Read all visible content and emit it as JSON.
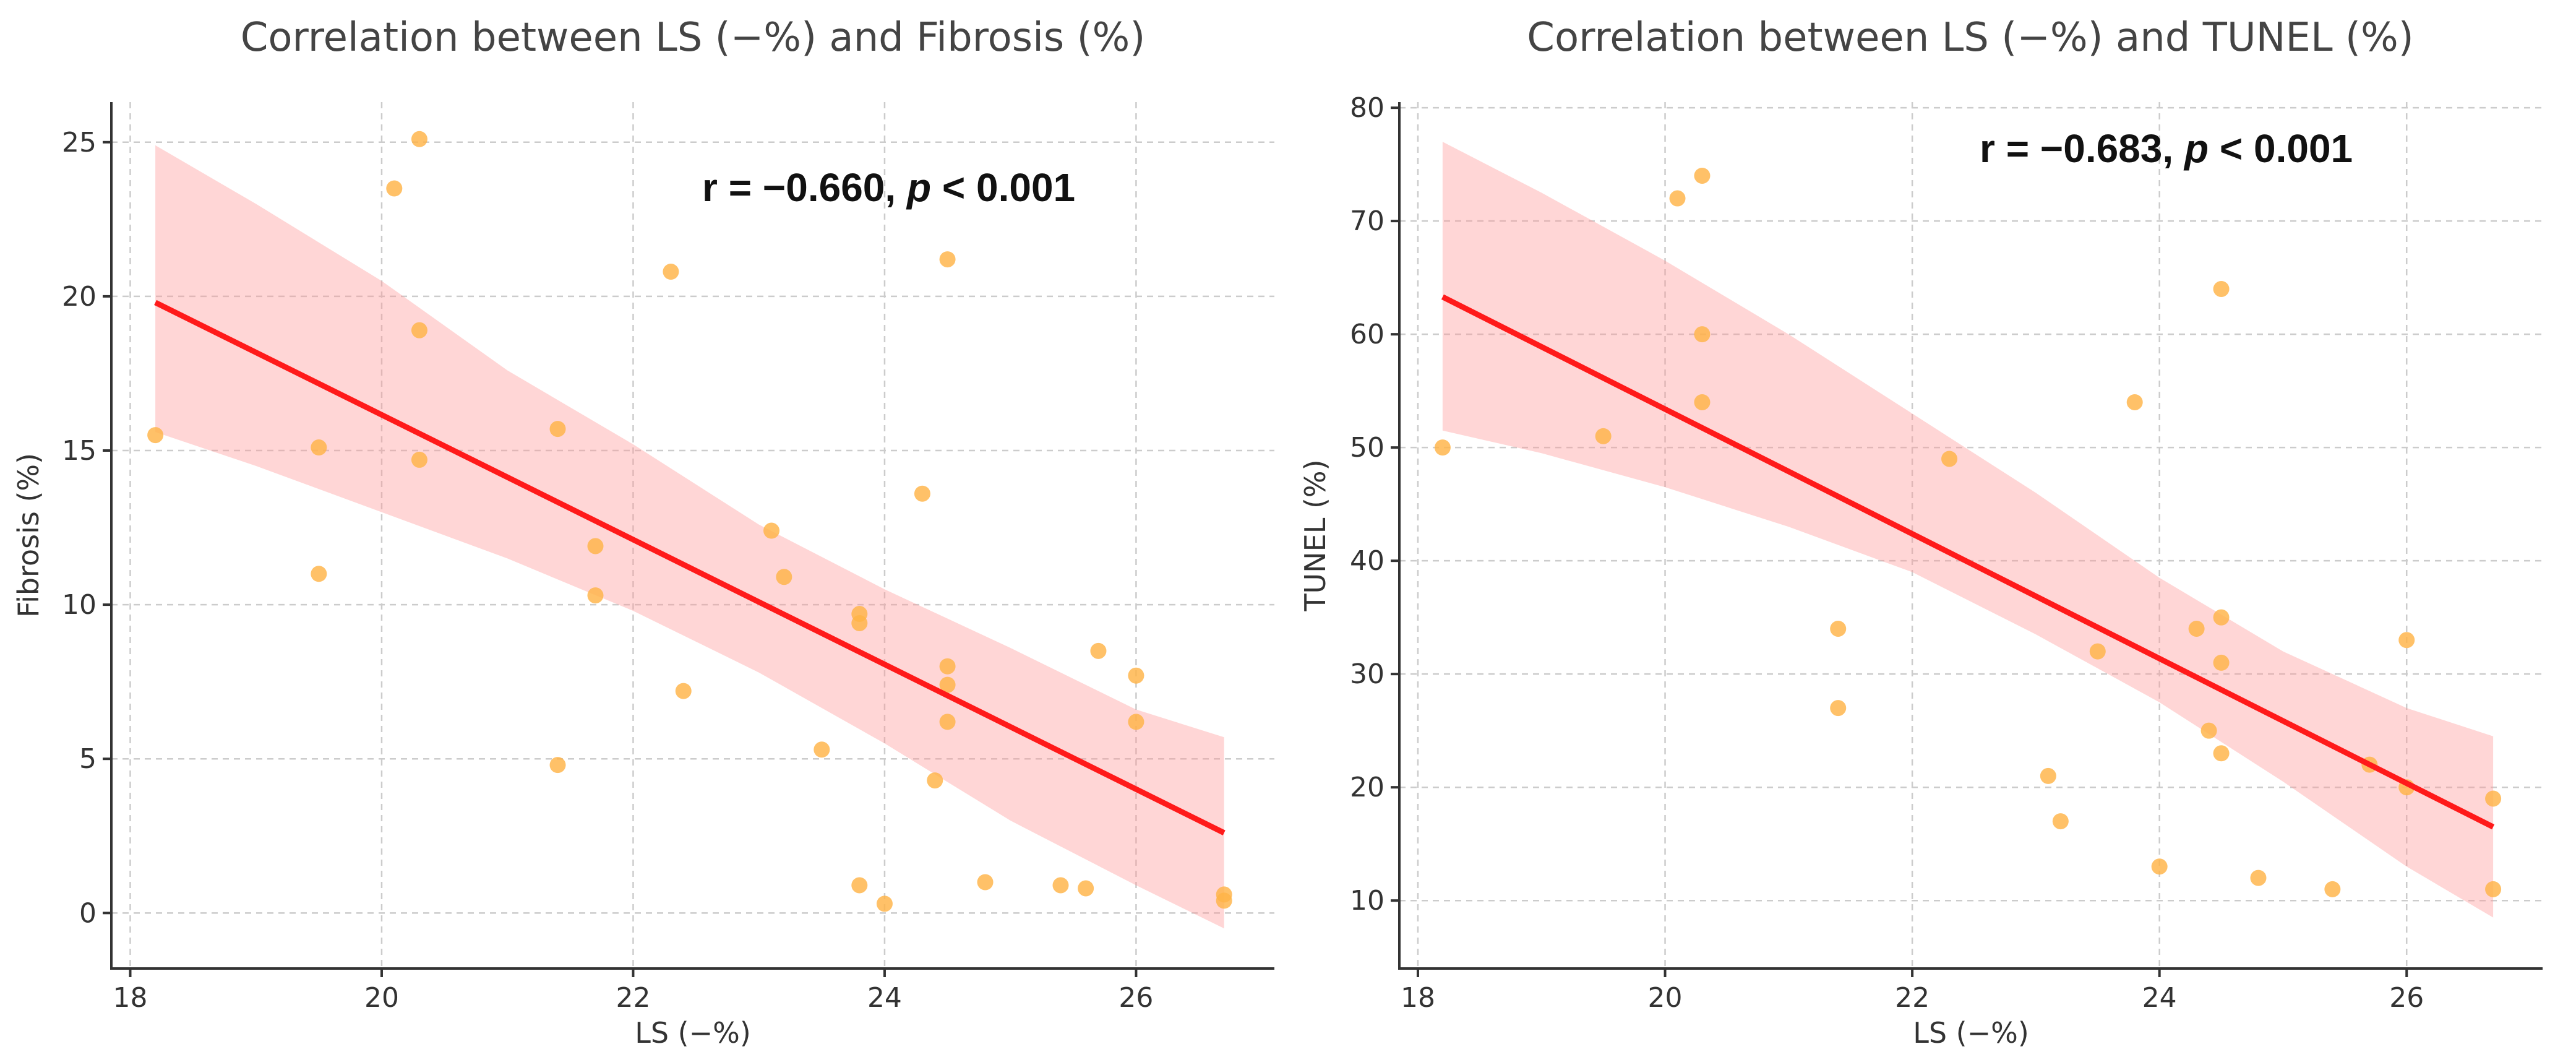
{
  "chart_data": [
    {
      "type": "scatter",
      "title": "Correlation between LS (−%)  and Fibrosis (%)",
      "xlabel": "LS (−%)",
      "ylabel": "Fibrosis (%)",
      "xlim": [
        17.85,
        27.1
      ],
      "ylim": [
        -1.8,
        26.3
      ],
      "xticks": [
        18,
        20,
        22,
        24,
        26
      ],
      "yticks": [
        0,
        5,
        10,
        15,
        20,
        25
      ],
      "grid": true,
      "annotation": {
        "prefix": "r = −0.660, ",
        "italic": "p",
        "suffix": " < 0.001"
      },
      "fit": {
        "x": [
          18.2,
          26.7
        ],
        "y": [
          19.8,
          2.6
        ]
      },
      "ci_band": {
        "x": [
          18.2,
          19.0,
          20.0,
          21.0,
          22.0,
          23.0,
          24.0,
          25.0,
          26.0,
          26.7
        ],
        "upper": [
          24.9,
          23.0,
          20.5,
          17.6,
          15.2,
          12.6,
          10.5,
          8.6,
          6.6,
          5.7
        ],
        "lower": [
          15.6,
          14.5,
          13.0,
          11.5,
          9.8,
          7.8,
          5.5,
          3.0,
          0.9,
          -0.5
        ]
      },
      "points": [
        {
          "x": 18.2,
          "y": 15.5
        },
        {
          "x": 19.5,
          "y": 15.1
        },
        {
          "x": 19.5,
          "y": 11.0
        },
        {
          "x": 20.1,
          "y": 23.5
        },
        {
          "x": 20.3,
          "y": 25.1
        },
        {
          "x": 20.3,
          "y": 18.9
        },
        {
          "x": 20.3,
          "y": 14.7
        },
        {
          "x": 21.4,
          "y": 15.7
        },
        {
          "x": 21.4,
          "y": 4.8
        },
        {
          "x": 21.7,
          "y": 11.9
        },
        {
          "x": 21.7,
          "y": 10.3
        },
        {
          "x": 22.3,
          "y": 20.8
        },
        {
          "x": 22.4,
          "y": 7.2
        },
        {
          "x": 23.1,
          "y": 12.4
        },
        {
          "x": 23.2,
          "y": 10.9
        },
        {
          "x": 23.5,
          "y": 5.3
        },
        {
          "x": 23.8,
          "y": 9.7
        },
        {
          "x": 23.8,
          "y": 9.4
        },
        {
          "x": 23.8,
          "y": 0.9
        },
        {
          "x": 24.0,
          "y": 0.3
        },
        {
          "x": 24.3,
          "y": 13.6
        },
        {
          "x": 24.4,
          "y": 4.3
        },
        {
          "x": 24.5,
          "y": 21.2
        },
        {
          "x": 24.5,
          "y": 8.0
        },
        {
          "x": 24.5,
          "y": 7.4
        },
        {
          "x": 24.5,
          "y": 6.2
        },
        {
          "x": 24.8,
          "y": 1.0
        },
        {
          "x": 25.4,
          "y": 0.9
        },
        {
          "x": 25.6,
          "y": 0.8
        },
        {
          "x": 25.7,
          "y": 8.5
        },
        {
          "x": 26.0,
          "y": 7.7
        },
        {
          "x": 26.0,
          "y": 6.2
        },
        {
          "x": 26.7,
          "y": 0.6
        },
        {
          "x": 26.7,
          "y": 0.4
        }
      ]
    },
    {
      "type": "scatter",
      "title": "Correlation between LS (−%)  and TUNEL (%)",
      "xlabel": "LS (−%)",
      "ylabel": "TUNEL (%)",
      "xlim": [
        17.85,
        27.1
      ],
      "ylim": [
        4.0,
        80.5
      ],
      "xticks": [
        18,
        20,
        22,
        24,
        26
      ],
      "yticks": [
        10,
        20,
        30,
        40,
        50,
        60,
        70,
        80
      ],
      "grid": true,
      "annotation": {
        "prefix": "r = −0.683, ",
        "italic": "p",
        "suffix": " < 0.001"
      },
      "fit": {
        "x": [
          18.2,
          26.7
        ],
        "y": [
          63.3,
          16.5
        ]
      },
      "ci_band": {
        "x": [
          18.2,
          19.0,
          20.0,
          21.0,
          22.0,
          23.0,
          24.0,
          25.0,
          26.0,
          26.7
        ],
        "upper": [
          77.0,
          72.5,
          66.5,
          60.0,
          53.0,
          46.0,
          38.5,
          32.0,
          27.0,
          24.5
        ],
        "lower": [
          51.5,
          49.5,
          46.5,
          43.0,
          39.0,
          33.5,
          27.5,
          20.5,
          13.0,
          8.5
        ]
      },
      "points": [
        {
          "x": 18.2,
          "y": 50
        },
        {
          "x": 19.5,
          "y": 51
        },
        {
          "x": 20.1,
          "y": 72
        },
        {
          "x": 20.3,
          "y": 74
        },
        {
          "x": 20.3,
          "y": 60
        },
        {
          "x": 20.3,
          "y": 54
        },
        {
          "x": 21.4,
          "y": 34
        },
        {
          "x": 21.4,
          "y": 27
        },
        {
          "x": 22.3,
          "y": 49
        },
        {
          "x": 23.1,
          "y": 21
        },
        {
          "x": 23.2,
          "y": 17
        },
        {
          "x": 23.5,
          "y": 32
        },
        {
          "x": 23.8,
          "y": 54
        },
        {
          "x": 24.0,
          "y": 13
        },
        {
          "x": 24.3,
          "y": 34
        },
        {
          "x": 24.4,
          "y": 25
        },
        {
          "x": 24.5,
          "y": 64
        },
        {
          "x": 24.5,
          "y": 35
        },
        {
          "x": 24.5,
          "y": 31
        },
        {
          "x": 24.5,
          "y": 23
        },
        {
          "x": 24.8,
          "y": 12
        },
        {
          "x": 25.4,
          "y": 11
        },
        {
          "x": 25.7,
          "y": 22
        },
        {
          "x": 26.0,
          "y": 33
        },
        {
          "x": 26.0,
          "y": 20
        },
        {
          "x": 26.7,
          "y": 19
        },
        {
          "x": 26.7,
          "y": 11
        }
      ]
    }
  ],
  "colors": {
    "points": "#ffb347",
    "fit": "#ff1a1a",
    "band": "#ff9999"
  }
}
